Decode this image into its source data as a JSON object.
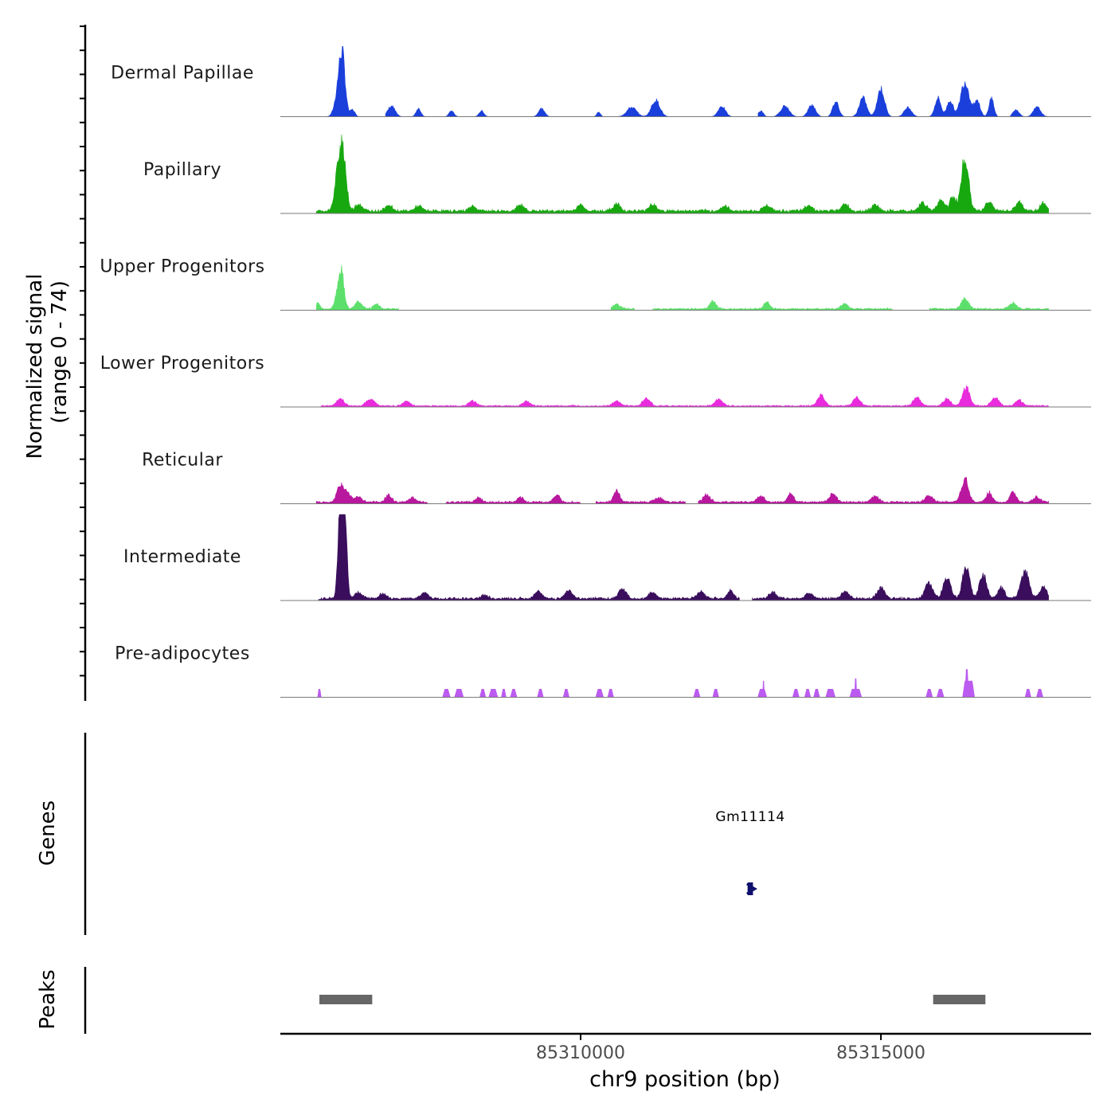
{
  "chart_data": {
    "type": "area",
    "title": "",
    "ylabel_line1": "Normalized signal",
    "ylabel_line2": "(range 0 - 74)",
    "ylim": [
      0,
      74
    ],
    "xlabel": "chr9 position (bp)",
    "xlim": [
      85305000,
      85318500
    ],
    "xticks": [
      85310000,
      85315000
    ],
    "xtick_labels": [
      "85310000",
      "85315000"
    ],
    "region": {
      "start": 85305600,
      "end": 85317800
    },
    "tracks": [
      {
        "name": "Dermal Papillae",
        "color": "#1a3fdb",
        "style": "smooth",
        "baseline": 0,
        "peaks": [
          {
            "pos": 85305970,
            "height": 22,
            "width": 60
          },
          {
            "pos": 85306020,
            "height": 30,
            "width": 45
          },
          {
            "pos": 85306060,
            "height": 18,
            "width": 40
          },
          {
            "pos": 85306200,
            "height": 6,
            "width": 40
          },
          {
            "pos": 85306850,
            "height": 9,
            "width": 60
          },
          {
            "pos": 85307300,
            "height": 7,
            "width": 40
          },
          {
            "pos": 85307850,
            "height": 5,
            "width": 40
          },
          {
            "pos": 85308350,
            "height": 5,
            "width": 40
          },
          {
            "pos": 85309350,
            "height": 7,
            "width": 50
          },
          {
            "pos": 85310300,
            "height": 4,
            "width": 30
          },
          {
            "pos": 85310850,
            "height": 8,
            "width": 80
          },
          {
            "pos": 85311250,
            "height": 14,
            "width": 70
          },
          {
            "pos": 85312350,
            "height": 9,
            "width": 60
          },
          {
            "pos": 85313000,
            "height": 5,
            "width": 40
          },
          {
            "pos": 85313400,
            "height": 9,
            "width": 70
          },
          {
            "pos": 85313850,
            "height": 10,
            "width": 60
          },
          {
            "pos": 85314250,
            "height": 13,
            "width": 50
          },
          {
            "pos": 85314700,
            "height": 16,
            "width": 60
          },
          {
            "pos": 85315000,
            "height": 24,
            "width": 60
          },
          {
            "pos": 85315450,
            "height": 8,
            "width": 60
          },
          {
            "pos": 85315950,
            "height": 16,
            "width": 50
          },
          {
            "pos": 85316150,
            "height": 14,
            "width": 50
          },
          {
            "pos": 85316400,
            "height": 30,
            "width": 70
          },
          {
            "pos": 85316600,
            "height": 14,
            "width": 50
          },
          {
            "pos": 85316840,
            "height": 16,
            "width": 40
          },
          {
            "pos": 85317250,
            "height": 6,
            "width": 50
          },
          {
            "pos": 85317600,
            "height": 8,
            "width": 60
          }
        ],
        "gaps": [
          [
            85306420,
            85306750
          ],
          [
            85307500,
            85307750
          ],
          [
            85308550,
            85309220
          ],
          [
            85309550,
            85310200
          ],
          [
            85311550,
            85312000
          ],
          [
            85312650,
            85312950
          ],
          [
            85316950,
            85317150
          ]
        ]
      },
      {
        "name": "Papillary",
        "color": "#17a80f",
        "style": "smooth",
        "baseline": 2.2,
        "peaks": [
          {
            "pos": 85305950,
            "height": 26,
            "width": 50
          },
          {
            "pos": 85306020,
            "height": 44,
            "width": 45
          },
          {
            "pos": 85306080,
            "height": 22,
            "width": 40
          },
          {
            "pos": 85306300,
            "height": 6,
            "width": 60
          },
          {
            "pos": 85306800,
            "height": 5,
            "width": 60
          },
          {
            "pos": 85307300,
            "height": 4,
            "width": 60
          },
          {
            "pos": 85308200,
            "height": 4,
            "width": 60
          },
          {
            "pos": 85309000,
            "height": 5,
            "width": 60
          },
          {
            "pos": 85310000,
            "height": 5,
            "width": 60
          },
          {
            "pos": 85310600,
            "height": 6,
            "width": 60
          },
          {
            "pos": 85311200,
            "height": 6,
            "width": 60
          },
          {
            "pos": 85312400,
            "height": 4,
            "width": 60
          },
          {
            "pos": 85313100,
            "height": 5,
            "width": 60
          },
          {
            "pos": 85313800,
            "height": 5,
            "width": 60
          },
          {
            "pos": 85314400,
            "height": 6,
            "width": 60
          },
          {
            "pos": 85314900,
            "height": 5,
            "width": 60
          },
          {
            "pos": 85315700,
            "height": 7,
            "width": 60
          },
          {
            "pos": 85316000,
            "height": 10,
            "width": 60
          },
          {
            "pos": 85316200,
            "height": 12,
            "width": 50
          },
          {
            "pos": 85316400,
            "height": 45,
            "width": 60
          },
          {
            "pos": 85316800,
            "height": 8,
            "width": 60
          },
          {
            "pos": 85317300,
            "height": 7,
            "width": 60
          },
          {
            "pos": 85317700,
            "height": 7,
            "width": 50
          }
        ],
        "gaps": []
      },
      {
        "name": "Upper Progenitors",
        "color": "#5ce06b",
        "style": "smooth",
        "baseline": 1.2,
        "peaks": [
          {
            "pos": 85305630,
            "height": 5,
            "width": 30
          },
          {
            "pos": 85305970,
            "height": 14,
            "width": 50
          },
          {
            "pos": 85306020,
            "height": 26,
            "width": 45
          },
          {
            "pos": 85306300,
            "height": 6,
            "width": 60
          },
          {
            "pos": 85306600,
            "height": 4,
            "width": 50
          },
          {
            "pos": 85310600,
            "height": 4,
            "width": 60
          },
          {
            "pos": 85312200,
            "height": 7,
            "width": 50
          },
          {
            "pos": 85313100,
            "height": 6,
            "width": 50
          },
          {
            "pos": 85314400,
            "height": 5,
            "width": 50
          },
          {
            "pos": 85316400,
            "height": 9,
            "width": 60
          },
          {
            "pos": 85317200,
            "height": 5,
            "width": 60
          }
        ],
        "gaps": [
          [
            85306980,
            85310500
          ],
          [
            85310900,
            85311200
          ],
          [
            85315200,
            85315800
          ]
        ]
      },
      {
        "name": "Lower Progenitors",
        "color": "#e82bdc",
        "style": "smooth",
        "baseline": 1.0,
        "peaks": [
          {
            "pos": 85306000,
            "height": 6,
            "width": 60
          },
          {
            "pos": 85306500,
            "height": 6,
            "width": 70
          },
          {
            "pos": 85307100,
            "height": 4,
            "width": 60
          },
          {
            "pos": 85308200,
            "height": 4,
            "width": 60
          },
          {
            "pos": 85309100,
            "height": 4,
            "width": 60
          },
          {
            "pos": 85310600,
            "height": 4,
            "width": 60
          },
          {
            "pos": 85311100,
            "height": 7,
            "width": 60
          },
          {
            "pos": 85312300,
            "height": 6,
            "width": 60
          },
          {
            "pos": 85314000,
            "height": 9,
            "width": 60
          },
          {
            "pos": 85314600,
            "height": 7,
            "width": 60
          },
          {
            "pos": 85315600,
            "height": 7,
            "width": 60
          },
          {
            "pos": 85316100,
            "height": 6,
            "width": 60
          },
          {
            "pos": 85316420,
            "height": 16,
            "width": 60
          },
          {
            "pos": 85316900,
            "height": 7,
            "width": 60
          },
          {
            "pos": 85317300,
            "height": 5,
            "width": 60
          }
        ],
        "gaps": [
          [
            85305600,
            85305660
          ]
        ]
      },
      {
        "name": "Reticular",
        "color": "#b8179e",
        "style": "smooth",
        "baseline": 1.5,
        "peaks": [
          {
            "pos": 85305990,
            "height": 13,
            "width": 50
          },
          {
            "pos": 85306100,
            "height": 8,
            "width": 60
          },
          {
            "pos": 85306300,
            "height": 5,
            "width": 60
          },
          {
            "pos": 85306800,
            "height": 6,
            "width": 50
          },
          {
            "pos": 85307200,
            "height": 4,
            "width": 50
          },
          {
            "pos": 85308300,
            "height": 4,
            "width": 50
          },
          {
            "pos": 85309000,
            "height": 4,
            "width": 50
          },
          {
            "pos": 85309600,
            "height": 6,
            "width": 50
          },
          {
            "pos": 85310600,
            "height": 9,
            "width": 50
          },
          {
            "pos": 85311300,
            "height": 4,
            "width": 60
          },
          {
            "pos": 85312100,
            "height": 6,
            "width": 60
          },
          {
            "pos": 85313000,
            "height": 5,
            "width": 60
          },
          {
            "pos": 85313500,
            "height": 7,
            "width": 50
          },
          {
            "pos": 85314200,
            "height": 7,
            "width": 60
          },
          {
            "pos": 85314900,
            "height": 5,
            "width": 60
          },
          {
            "pos": 85315800,
            "height": 6,
            "width": 60
          },
          {
            "pos": 85316400,
            "height": 20,
            "width": 60
          },
          {
            "pos": 85316800,
            "height": 8,
            "width": 50
          },
          {
            "pos": 85317200,
            "height": 9,
            "width": 50
          },
          {
            "pos": 85317600,
            "height": 4,
            "width": 60
          }
        ],
        "gaps": [
          [
            85307450,
            85307750
          ],
          [
            85310000,
            85310250
          ],
          [
            85311750,
            85311950
          ]
        ]
      },
      {
        "name": "Intermediate",
        "color": "#3a0e5c",
        "style": "smooth",
        "baseline": 1.8,
        "peaks": [
          {
            "pos": 85305980,
            "height": 40,
            "width": 30
          },
          {
            "pos": 85306030,
            "height": 74,
            "width": 45
          },
          {
            "pos": 85306080,
            "height": 35,
            "width": 35
          },
          {
            "pos": 85306300,
            "height": 6,
            "width": 60
          },
          {
            "pos": 85306700,
            "height": 4,
            "width": 60
          },
          {
            "pos": 85307400,
            "height": 5,
            "width": 60
          },
          {
            "pos": 85308400,
            "height": 3,
            "width": 60
          },
          {
            "pos": 85309300,
            "height": 6,
            "width": 60
          },
          {
            "pos": 85309800,
            "height": 7,
            "width": 60
          },
          {
            "pos": 85310700,
            "height": 9,
            "width": 60
          },
          {
            "pos": 85311200,
            "height": 5,
            "width": 60
          },
          {
            "pos": 85312000,
            "height": 6,
            "width": 60
          },
          {
            "pos": 85312500,
            "height": 7,
            "width": 50
          },
          {
            "pos": 85313200,
            "height": 5,
            "width": 60
          },
          {
            "pos": 85313800,
            "height": 5,
            "width": 60
          },
          {
            "pos": 85314400,
            "height": 6,
            "width": 60
          },
          {
            "pos": 85315000,
            "height": 9,
            "width": 60
          },
          {
            "pos": 85315800,
            "height": 14,
            "width": 60
          },
          {
            "pos": 85316100,
            "height": 18,
            "width": 60
          },
          {
            "pos": 85316420,
            "height": 27,
            "width": 60
          },
          {
            "pos": 85316700,
            "height": 20,
            "width": 60
          },
          {
            "pos": 85317000,
            "height": 9,
            "width": 60
          },
          {
            "pos": 85317400,
            "height": 22,
            "width": 70
          },
          {
            "pos": 85317700,
            "height": 10,
            "width": 60
          }
        ],
        "gaps": [
          [
            85305600,
            85305630
          ],
          [
            85312650,
            85312850
          ]
        ]
      },
      {
        "name": "Pre-adipocytes",
        "color": "#bb5bf0",
        "style": "blocky",
        "baseline": 0,
        "blocks": [
          {
            "start": 85305620,
            "end": 85305680,
            "height": 7
          },
          {
            "start": 85307700,
            "end": 85307830,
            "height": 7
          },
          {
            "start": 85307900,
            "end": 85308050,
            "height": 7
          },
          {
            "start": 85308320,
            "end": 85308420,
            "height": 7
          },
          {
            "start": 85308470,
            "end": 85308620,
            "height": 7
          },
          {
            "start": 85308680,
            "end": 85308760,
            "height": 7
          },
          {
            "start": 85308830,
            "end": 85308940,
            "height": 7
          },
          {
            "start": 85309280,
            "end": 85309380,
            "height": 7
          },
          {
            "start": 85309710,
            "end": 85309810,
            "height": 7
          },
          {
            "start": 85310250,
            "end": 85310380,
            "height": 7
          },
          {
            "start": 85310450,
            "end": 85310550,
            "height": 7
          },
          {
            "start": 85311880,
            "end": 85311990,
            "height": 7
          },
          {
            "start": 85312200,
            "end": 85312300,
            "height": 7
          },
          {
            "start": 85312950,
            "end": 85313100,
            "height": 7
          },
          {
            "start": 85313030,
            "end": 85313060,
            "height": 14
          },
          {
            "start": 85313530,
            "end": 85313640,
            "height": 7
          },
          {
            "start": 85313730,
            "end": 85313830,
            "height": 7
          },
          {
            "start": 85313880,
            "end": 85313980,
            "height": 7
          },
          {
            "start": 85314080,
            "end": 85314240,
            "height": 7
          },
          {
            "start": 85314480,
            "end": 85314680,
            "height": 7
          },
          {
            "start": 85314560,
            "end": 85314600,
            "height": 16
          },
          {
            "start": 85315750,
            "end": 85315860,
            "height": 7
          },
          {
            "start": 85315930,
            "end": 85316050,
            "height": 7
          },
          {
            "start": 85316360,
            "end": 85316560,
            "height": 14
          },
          {
            "start": 85316400,
            "end": 85316460,
            "height": 24
          },
          {
            "start": 85317400,
            "end": 85317500,
            "height": 7
          },
          {
            "start": 85317590,
            "end": 85317700,
            "height": 7
          }
        ]
      }
    ],
    "genes": {
      "label": "Genes",
      "items": [
        {
          "name": "Gm11114",
          "start": 85312780,
          "end": 85312870,
          "strand": "+"
        }
      ]
    },
    "peaks_track": {
      "label": "Peaks",
      "items": [
        {
          "start": 85305650,
          "end": 85306530
        },
        {
          "start": 85315870,
          "end": 85316740
        }
      ]
    }
  }
}
